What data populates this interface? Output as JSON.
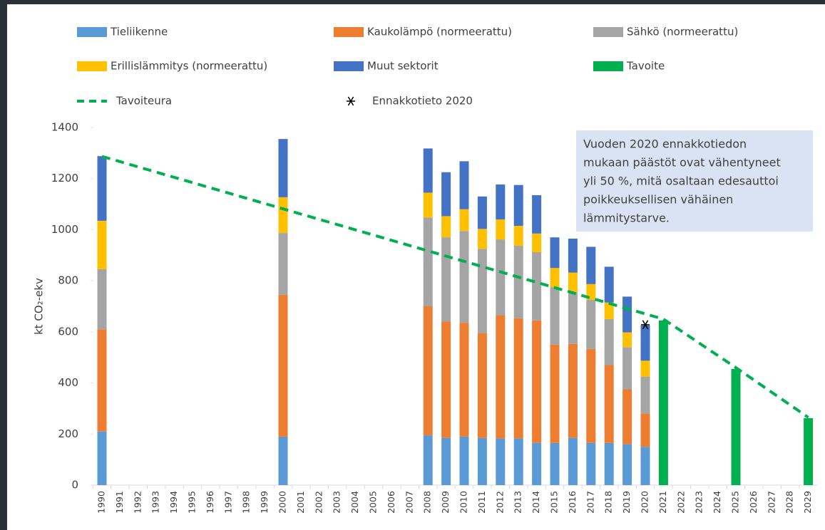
{
  "chart_data": {
    "type": "bar",
    "stacked": true,
    "y_label": "kt CO₂-ekv",
    "categories": [
      "1990",
      "1991",
      "1992",
      "1993",
      "1994",
      "1995",
      "1996",
      "1997",
      "1998",
      "1999",
      "2000",
      "2001",
      "2002",
      "2003",
      "2004",
      "2005",
      "2006",
      "2007",
      "2008",
      "2009",
      "2010",
      "2011",
      "2012",
      "2013",
      "2014",
      "2015",
      "2016",
      "2017",
      "2018",
      "2019",
      "2020",
      "2021",
      "2022",
      "2023",
      "2024",
      "2025",
      "2026",
      "2027",
      "2028",
      "2029"
    ],
    "ylim": [
      0,
      1400
    ],
    "yticks": [
      0,
      200,
      400,
      600,
      800,
      1000,
      1200,
      1400
    ],
    "series": [
      {
        "name": "Tieliikenne",
        "type": "bar",
        "color": "#5b9bd5",
        "values": [
          210,
          null,
          null,
          null,
          null,
          null,
          null,
          null,
          null,
          null,
          190,
          null,
          null,
          null,
          null,
          null,
          null,
          null,
          195,
          185,
          190,
          185,
          183,
          183,
          165,
          165,
          185,
          165,
          165,
          160,
          150,
          null,
          null,
          null,
          null,
          null,
          null,
          null,
          null,
          null
        ]
      },
      {
        "name": "Kaukolämpö (normeerattu)",
        "type": "bar",
        "color": "#ed7d31",
        "values": [
          400,
          null,
          null,
          null,
          null,
          null,
          null,
          null,
          null,
          null,
          555,
          null,
          null,
          null,
          null,
          null,
          null,
          null,
          505,
          455,
          445,
          410,
          482,
          470,
          480,
          385,
          368,
          368,
          305,
          215,
          130,
          null,
          null,
          null,
          null,
          null,
          null,
          null,
          null,
          null
        ]
      },
      {
        "name": "Sähkö (normeerattu)",
        "type": "bar",
        "color": "#a5a5a5",
        "values": [
          235,
          null,
          null,
          null,
          null,
          null,
          null,
          null,
          null,
          null,
          242,
          null,
          null,
          null,
          null,
          null,
          null,
          null,
          348,
          330,
          360,
          330,
          297,
          284,
          267,
          225,
          202,
          192,
          180,
          165,
          145,
          null,
          null,
          null,
          null,
          null,
          null,
          null,
          null,
          null
        ]
      },
      {
        "name": "Erillislämmitys (normeerattu)",
        "type": "bar",
        "color": "#ffc000",
        "values": [
          190,
          null,
          null,
          null,
          null,
          null,
          null,
          null,
          null,
          null,
          140,
          null,
          null,
          null,
          null,
          null,
          null,
          null,
          97,
          83,
          85,
          78,
          78,
          78,
          73,
          75,
          77,
          62,
          65,
          58,
          62,
          null,
          null,
          null,
          null,
          null,
          null,
          null,
          null,
          null
        ]
      },
      {
        "name": "Muut sektorit",
        "type": "bar",
        "color": "#4472c4",
        "values": [
          253,
          null,
          null,
          null,
          null,
          null,
          null,
          null,
          null,
          null,
          228,
          null,
          null,
          null,
          null,
          null,
          null,
          null,
          173,
          172,
          188,
          127,
          137,
          160,
          150,
          120,
          133,
          146,
          140,
          140,
          138,
          null,
          null,
          null,
          null,
          null,
          null,
          null,
          null,
          null
        ]
      },
      {
        "name": "Tavoite",
        "type": "bar",
        "color": "#00b050",
        "values": [
          null,
          null,
          null,
          null,
          null,
          null,
          null,
          null,
          null,
          null,
          null,
          null,
          null,
          null,
          null,
          null,
          null,
          null,
          null,
          null,
          null,
          null,
          null,
          null,
          null,
          null,
          null,
          null,
          null,
          null,
          null,
          645,
          null,
          null,
          null,
          455,
          null,
          null,
          null,
          262
        ]
      },
      {
        "name": "Tavoiteura",
        "type": "line",
        "color": "#00b050",
        "x": [
          1990,
          2021,
          2025,
          2029
        ],
        "values": [
          1287,
          650,
          460,
          265
        ]
      },
      {
        "name": "Ennakkotieto 2020",
        "type": "scatter",
        "color": "#000000",
        "x": [
          2020
        ],
        "values": [
          628
        ]
      }
    ],
    "annotation": [
      "Vuoden 2020 ennakkotiedon",
      "mukaan päästöt ovat vähentyneet",
      "yli 50 %, mitä osaltaan edesauttoi",
      "poikkeuksellisen vähäinen",
      "lämmitystarve."
    ]
  }
}
